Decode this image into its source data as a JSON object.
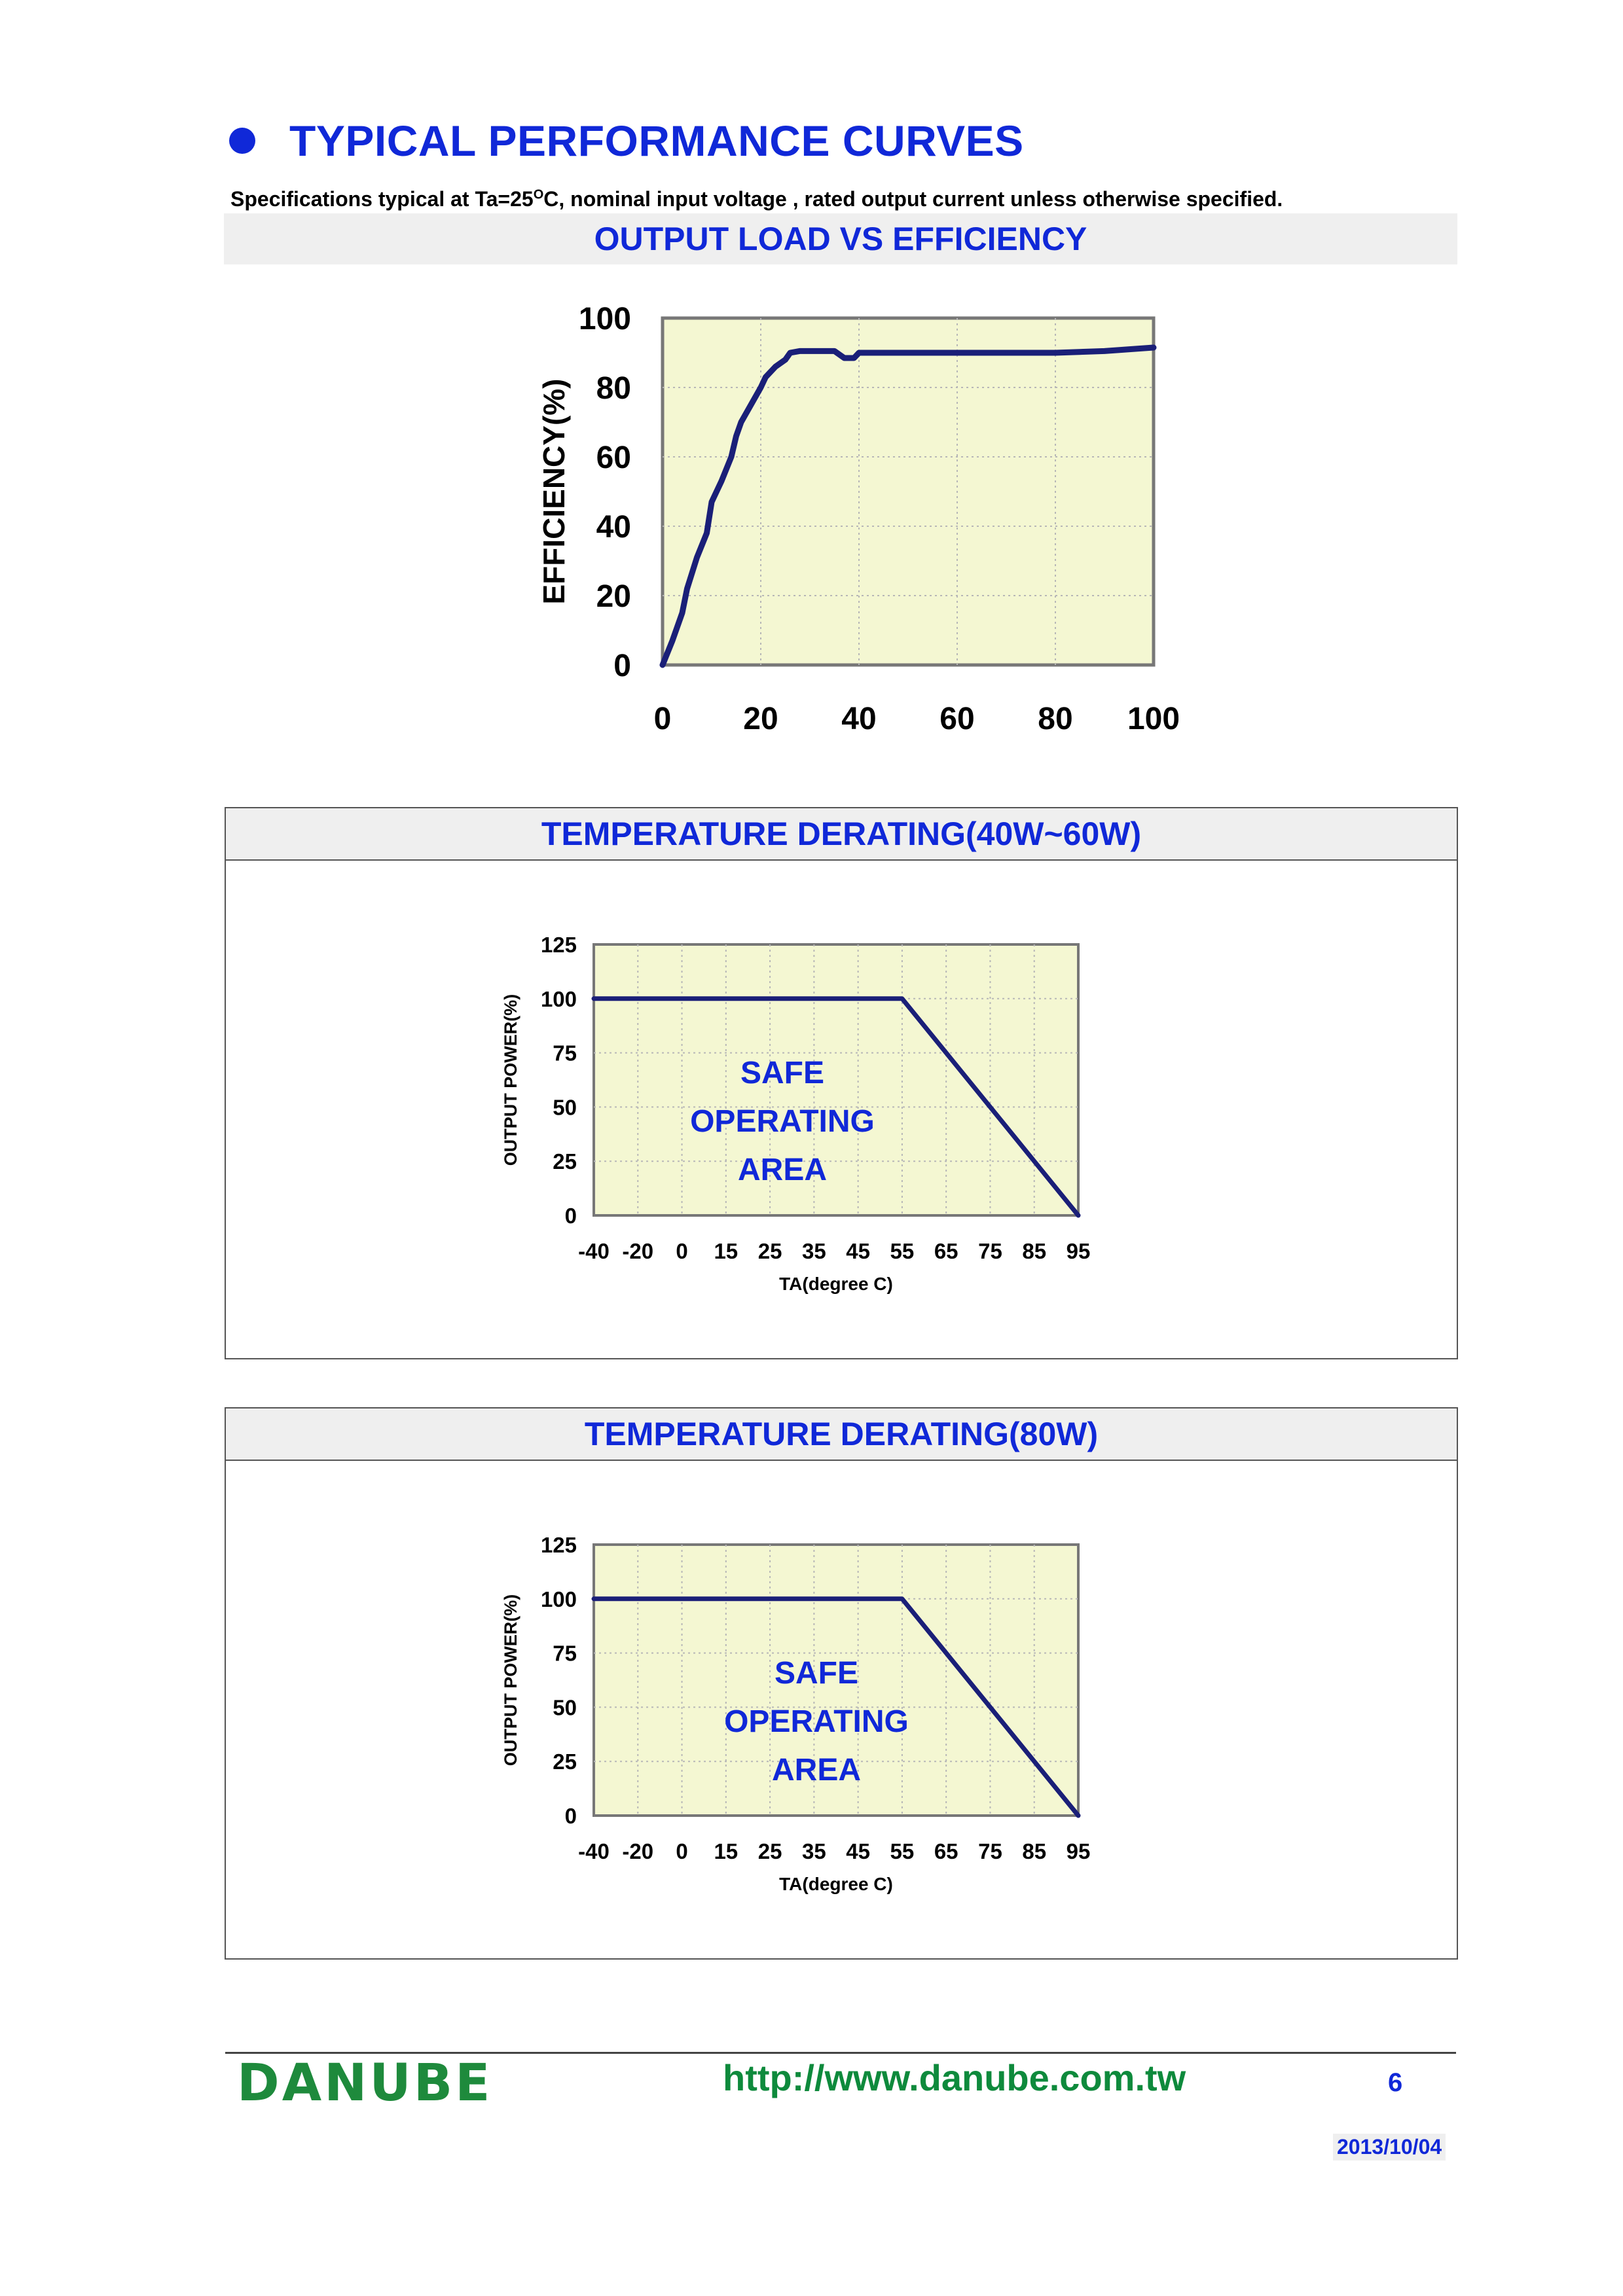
{
  "header": {
    "title": "TYPICAL PERFORMANCE CURVES",
    "spec_prefix": "Specifications typical at Ta=25",
    "spec_sup": "O",
    "spec_suffix": "C, nominal input voltage , rated output current unless otherwise specified."
  },
  "sections": [
    {
      "title": "OUTPUT LOAD VS EFFICIENCY"
    },
    {
      "title": "TEMPERATURE DERATING(40W~60W)"
    },
    {
      "title": "TEMPERATURE DERATING(80W)"
    }
  ],
  "chart_data": [
    {
      "type": "line",
      "title": "",
      "xlabel": "",
      "ylabel": "EFFICIENCY(%)",
      "x_ticks": [
        "0",
        "20",
        "40",
        "60",
        "80",
        "100"
      ],
      "y_ticks": [
        "0",
        "20",
        "40",
        "60",
        "80",
        "100"
      ],
      "xlim": [
        0,
        100
      ],
      "ylim": [
        0,
        100
      ],
      "grid": true,
      "colors": {
        "line": "#1a1f78",
        "plot_bg": "#f4f7d2",
        "grid": "#b7b7b7"
      },
      "x": [
        0,
        2,
        4,
        5,
        7,
        9,
        10,
        12,
        14,
        15,
        16,
        18,
        20,
        21,
        23,
        25,
        26,
        28,
        30,
        33,
        35,
        37,
        39,
        40,
        45,
        50,
        60,
        70,
        80,
        90,
        100
      ],
      "y": [
        0,
        7,
        15,
        22,
        31,
        38,
        47,
        53,
        60,
        66,
        70,
        75,
        80,
        83,
        86,
        88,
        90,
        90.5,
        90.5,
        90.5,
        90.5,
        88.5,
        88.5,
        90,
        90,
        90,
        90,
        90,
        90,
        90.5,
        91.5
      ]
    },
    {
      "type": "line",
      "title": "",
      "xlabel": "TA(degree C)",
      "ylabel": "OUTPUT POWER(%)",
      "x_ticks": [
        "-40",
        "-20",
        "0",
        "15",
        "25",
        "35",
        "45",
        "55",
        "65",
        "75",
        "85",
        "95"
      ],
      "y_ticks": [
        "0",
        "25",
        "50",
        "75",
        "100",
        "125"
      ],
      "ylim": [
        0,
        125
      ],
      "grid": true,
      "annotation": [
        "SAFE",
        "OPERATING",
        "AREA"
      ],
      "colors": {
        "line": "#1a1f78",
        "plot_bg": "#f4f7d2",
        "grid": "#b7b7b7",
        "annotation": "#1028d8"
      },
      "x": [
        "-40",
        "55",
        "95"
      ],
      "y": [
        100,
        100,
        0
      ]
    },
    {
      "type": "line",
      "title": "",
      "xlabel": "TA(degree C)",
      "ylabel": "OUTPUT POWER(%)",
      "x_ticks": [
        "-40",
        "-20",
        "0",
        "15",
        "25",
        "35",
        "45",
        "55",
        "65",
        "75",
        "85",
        "95"
      ],
      "y_ticks": [
        "0",
        "25",
        "50",
        "75",
        "100",
        "125"
      ],
      "ylim": [
        0,
        125
      ],
      "grid": true,
      "annotation": [
        "SAFE",
        "OPERATING",
        "AREA"
      ],
      "colors": {
        "line": "#1a1f78",
        "plot_bg": "#f4f7d2",
        "grid": "#b7b7b7",
        "annotation": "#1028d8"
      },
      "x": [
        "-40",
        "55",
        "95"
      ],
      "y": [
        100,
        100,
        0
      ]
    }
  ],
  "footer": {
    "brand": "DANUBE",
    "url": "http://www.danube.com.tw",
    "page": "6",
    "date": "2013/10/04"
  }
}
